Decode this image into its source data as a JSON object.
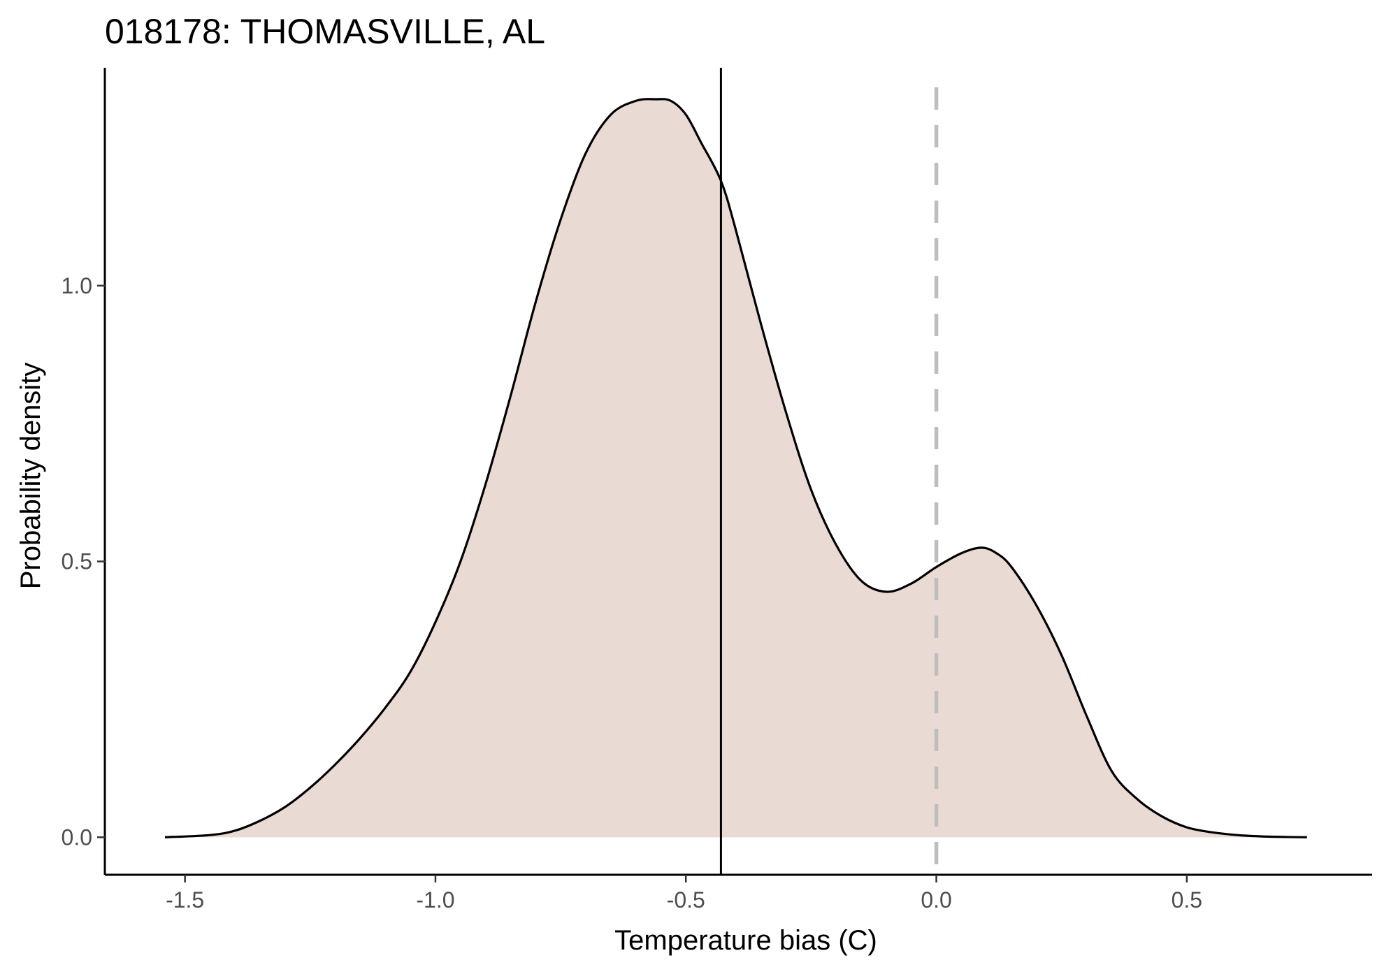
{
  "chart_data": {
    "type": "area",
    "title": "018178: THOMASVILLE, AL",
    "xlabel": "Temperature bias (C)",
    "ylabel": "Probability density",
    "xlim": [
      -1.66,
      0.87
    ],
    "ylim": [
      -0.068,
      1.395
    ],
    "x_ticks": [
      {
        "value": -1.5,
        "label": "-1.5"
      },
      {
        "value": -1.0,
        "label": "-1.0"
      },
      {
        "value": -0.5,
        "label": "-0.5"
      },
      {
        "value": 0.0,
        "label": "0.0"
      },
      {
        "value": 0.5,
        "label": "0.5"
      }
    ],
    "y_ticks": [
      {
        "value": 0.0,
        "label": "0.0"
      },
      {
        "value": 0.5,
        "label": "0.5"
      },
      {
        "value": 1.0,
        "label": "1.0"
      }
    ],
    "grid": false,
    "fill_color": "#eadad4",
    "line_color": "#000000",
    "series": [
      {
        "x": [
          -1.54,
          -1.45,
          -1.4,
          -1.35,
          -1.3,
          -1.25,
          -1.2,
          -1.15,
          -1.1,
          -1.05,
          -1.0,
          -0.95,
          -0.9,
          -0.85,
          -0.8,
          -0.75,
          -0.7,
          -0.65,
          -0.6,
          -0.56,
          -0.53,
          -0.5,
          -0.47,
          -0.43,
          -0.4,
          -0.35,
          -0.3,
          -0.25,
          -0.2,
          -0.15,
          -0.1,
          -0.05,
          0.0,
          0.05,
          0.09,
          0.12,
          0.15,
          0.2,
          0.25,
          0.3,
          0.35,
          0.4,
          0.45,
          0.5,
          0.55,
          0.6,
          0.65,
          0.7,
          0.74
        ],
        "y": [
          0.0,
          0.004,
          0.012,
          0.03,
          0.055,
          0.09,
          0.132,
          0.18,
          0.235,
          0.3,
          0.39,
          0.5,
          0.64,
          0.8,
          0.97,
          1.12,
          1.24,
          1.31,
          1.335,
          1.338,
          1.335,
          1.31,
          1.26,
          1.19,
          1.1,
          0.93,
          0.77,
          0.63,
          0.53,
          0.465,
          0.445,
          0.46,
          0.49,
          0.515,
          0.525,
          0.515,
          0.49,
          0.42,
          0.33,
          0.22,
          0.12,
          0.07,
          0.038,
          0.018,
          0.009,
          0.004,
          0.0015,
          0.0005,
          0.0
        ]
      }
    ],
    "reference_lines": [
      {
        "axis": "x",
        "value": -0.43,
        "style": "solid",
        "color": "#000000"
      },
      {
        "axis": "x",
        "value": 0.0,
        "style": "dashed",
        "color": "#bebebe"
      }
    ]
  }
}
